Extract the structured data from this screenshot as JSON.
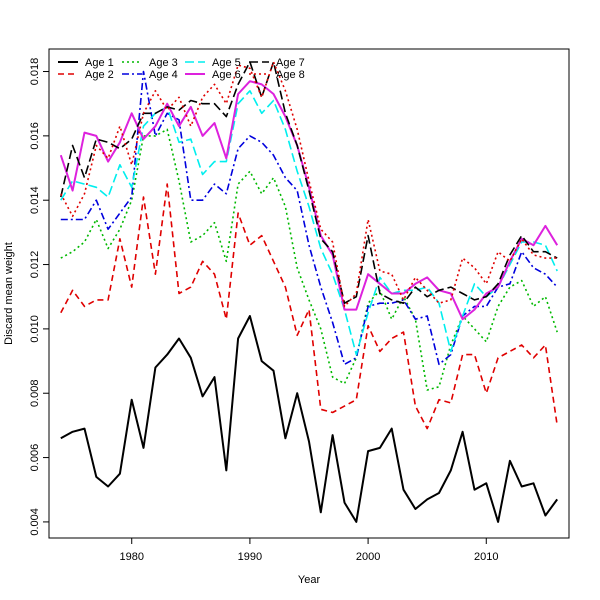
{
  "chart_data": {
    "type": "line",
    "title": "",
    "xlabel": "Year",
    "ylabel": "Discard mean weight",
    "xlim": [
      1973,
      2017
    ],
    "ylim": [
      0.0035,
      0.0187
    ],
    "x_ticks": [
      1980,
      1990,
      2000,
      2010
    ],
    "y_ticks": [
      0.004,
      0.006,
      0.008,
      0.01,
      0.012,
      0.014,
      0.016,
      0.018
    ],
    "y_tick_labels": [
      "0.004",
      "0.006",
      "0.008",
      "0.010",
      "0.012",
      "0.014",
      "0.016",
      "0.018"
    ],
    "grid": false,
    "legend_position": "top-left",
    "x": [
      1974,
      1975,
      1976,
      1977,
      1978,
      1979,
      1980,
      1981,
      1982,
      1983,
      1984,
      1985,
      1986,
      1987,
      1988,
      1989,
      1990,
      1991,
      1992,
      1993,
      1994,
      1995,
      1996,
      1997,
      1998,
      1999,
      2000,
      2001,
      2002,
      2003,
      2004,
      2005,
      2006,
      2007,
      2008,
      2009,
      2010,
      2011,
      2012,
      2013,
      2014,
      2015,
      2016
    ],
    "series": [
      {
        "name": "Age 1",
        "color": "#000000",
        "dash": "solid",
        "width": 2,
        "values": [
          0.0066,
          0.0068,
          0.0069,
          0.0054,
          0.0051,
          0.0055,
          0.0078,
          0.0063,
          0.0088,
          0.0092,
          0.0097,
          0.0091,
          0.0079,
          0.0085,
          0.0056,
          0.0097,
          0.0104,
          0.009,
          0.0087,
          0.0066,
          0.008,
          0.0065,
          0.0043,
          0.0067,
          0.0046,
          0.004,
          0.0062,
          0.0063,
          0.0069,
          0.005,
          0.0044,
          0.0047,
          0.0049,
          0.0056,
          0.0068,
          0.005,
          0.0052,
          0.004,
          0.0059,
          0.0051,
          0.0052,
          0.0042,
          0.0047
        ]
      },
      {
        "name": "Age 2",
        "color": "#df0000",
        "dash": "6,4",
        "width": 1.6,
        "values": [
          0.0105,
          0.0112,
          0.0107,
          0.0109,
          0.0109,
          0.0128,
          0.0113,
          0.0141,
          0.0117,
          0.0145,
          0.0111,
          0.0113,
          0.0121,
          0.0117,
          0.0103,
          0.0136,
          0.0126,
          0.0129,
          0.0121,
          0.0113,
          0.0098,
          0.0106,
          0.0075,
          0.0074,
          0.0076,
          0.0078,
          0.0101,
          0.0093,
          0.0097,
          0.0099,
          0.0076,
          0.0069,
          0.0078,
          0.0077,
          0.0092,
          0.0092,
          0.008,
          0.0091,
          0.0093,
          0.0095,
          0.0091,
          0.0095,
          0.007
        ]
      },
      {
        "name": "Age 3",
        "color": "#00b800",
        "dash": "2,3",
        "width": 1.6,
        "values": [
          0.0122,
          0.0124,
          0.0127,
          0.0134,
          0.0125,
          0.0131,
          0.014,
          0.016,
          0.016,
          0.0162,
          0.0146,
          0.0127,
          0.0129,
          0.0133,
          0.0121,
          0.0145,
          0.0149,
          0.0142,
          0.0147,
          0.0138,
          0.0119,
          0.0109,
          0.01,
          0.0085,
          0.0083,
          0.0091,
          0.0108,
          0.0112,
          0.0103,
          0.011,
          0.0103,
          0.0081,
          0.0082,
          0.0095,
          0.0104,
          0.01,
          0.0096,
          0.0107,
          0.0113,
          0.0115,
          0.0107,
          0.011,
          0.0099
        ]
      },
      {
        "name": "Age 4",
        "color": "#0000dd",
        "dash": "7,3,2,3",
        "width": 1.6,
        "values": [
          0.0134,
          0.0134,
          0.0134,
          0.014,
          0.0131,
          0.0136,
          0.0141,
          0.018,
          0.016,
          0.0167,
          0.0165,
          0.014,
          0.014,
          0.0145,
          0.0142,
          0.0156,
          0.016,
          0.0158,
          0.0154,
          0.0147,
          0.0143,
          0.0126,
          0.0113,
          0.0102,
          0.0089,
          0.0091,
          0.0107,
          0.0108,
          0.0108,
          0.0109,
          0.0103,
          0.0104,
          0.0089,
          0.0092,
          0.0104,
          0.0107,
          0.0107,
          0.0113,
          0.0114,
          0.0124,
          0.0119,
          0.0117,
          0.0113
        ]
      },
      {
        "name": "Age 5",
        "color": "#00eeee",
        "dash": "9,4",
        "width": 1.6,
        "values": [
          0.014,
          0.0146,
          0.0145,
          0.0144,
          0.0141,
          0.0151,
          0.0144,
          0.0163,
          0.0167,
          0.0169,
          0.0158,
          0.0159,
          0.0148,
          0.0152,
          0.0152,
          0.017,
          0.0174,
          0.0167,
          0.0171,
          0.0162,
          0.0149,
          0.0138,
          0.0125,
          0.0117,
          0.0106,
          0.0092,
          0.0105,
          0.0116,
          0.0111,
          0.0112,
          0.0112,
          0.0113,
          0.0108,
          0.0093,
          0.0104,
          0.0114,
          0.011,
          0.0113,
          0.012,
          0.0127,
          0.0127,
          0.0126,
          0.0118
        ]
      },
      {
        "name": "Age 6",
        "color": "#dd22dd",
        "dash": "solid",
        "width": 2,
        "values": [
          0.0154,
          0.0143,
          0.0161,
          0.016,
          0.0152,
          0.0158,
          0.0167,
          0.0159,
          0.0163,
          0.017,
          0.0163,
          0.0169,
          0.016,
          0.0164,
          0.0153,
          0.0173,
          0.0177,
          0.0176,
          0.0173,
          0.0166,
          0.0157,
          0.0144,
          0.0129,
          0.0123,
          0.0106,
          0.0106,
          0.0117,
          0.0114,
          0.0111,
          0.0111,
          0.0114,
          0.0116,
          0.0112,
          0.0111,
          0.0103,
          0.0106,
          0.0111,
          0.0113,
          0.0121,
          0.0128,
          0.0126,
          0.0132,
          0.0126
        ]
      },
      {
        "name": "Age 7",
        "color": "#000000",
        "dash": "9,4",
        "width": 1.6,
        "values": [
          0.0141,
          0.0157,
          0.0147,
          0.0159,
          0.0158,
          0.0156,
          0.0159,
          0.0167,
          0.0167,
          0.0169,
          0.0168,
          0.0171,
          0.017,
          0.017,
          0.0166,
          0.0176,
          0.0183,
          0.0172,
          0.0183,
          0.0167,
          0.0157,
          0.0143,
          0.0128,
          0.0124,
          0.0108,
          0.011,
          0.0129,
          0.0111,
          0.0109,
          0.0108,
          0.0113,
          0.011,
          0.0112,
          0.0113,
          0.0111,
          0.0109,
          0.011,
          0.0114,
          0.0123,
          0.0129,
          0.0124,
          0.0124,
          0.0122
        ]
      },
      {
        "name": "Age 8",
        "color": "#df0000",
        "dash": "2,3",
        "width": 1.6,
        "values": [
          0.0142,
          0.0135,
          0.0142,
          0.0157,
          0.0153,
          0.0163,
          0.0151,
          0.0167,
          0.0174,
          0.0168,
          0.0172,
          0.0163,
          0.0172,
          0.0176,
          0.017,
          0.0182,
          0.0181,
          0.0172,
          0.0183,
          0.0174,
          0.0162,
          0.0146,
          0.0131,
          0.0127,
          0.0107,
          0.0111,
          0.0134,
          0.0118,
          0.0117,
          0.0109,
          0.0116,
          0.0112,
          0.0108,
          0.0109,
          0.0122,
          0.0119,
          0.0114,
          0.0124,
          0.0121,
          0.0128,
          0.0123,
          0.0122,
          0.0122
        ]
      }
    ]
  }
}
